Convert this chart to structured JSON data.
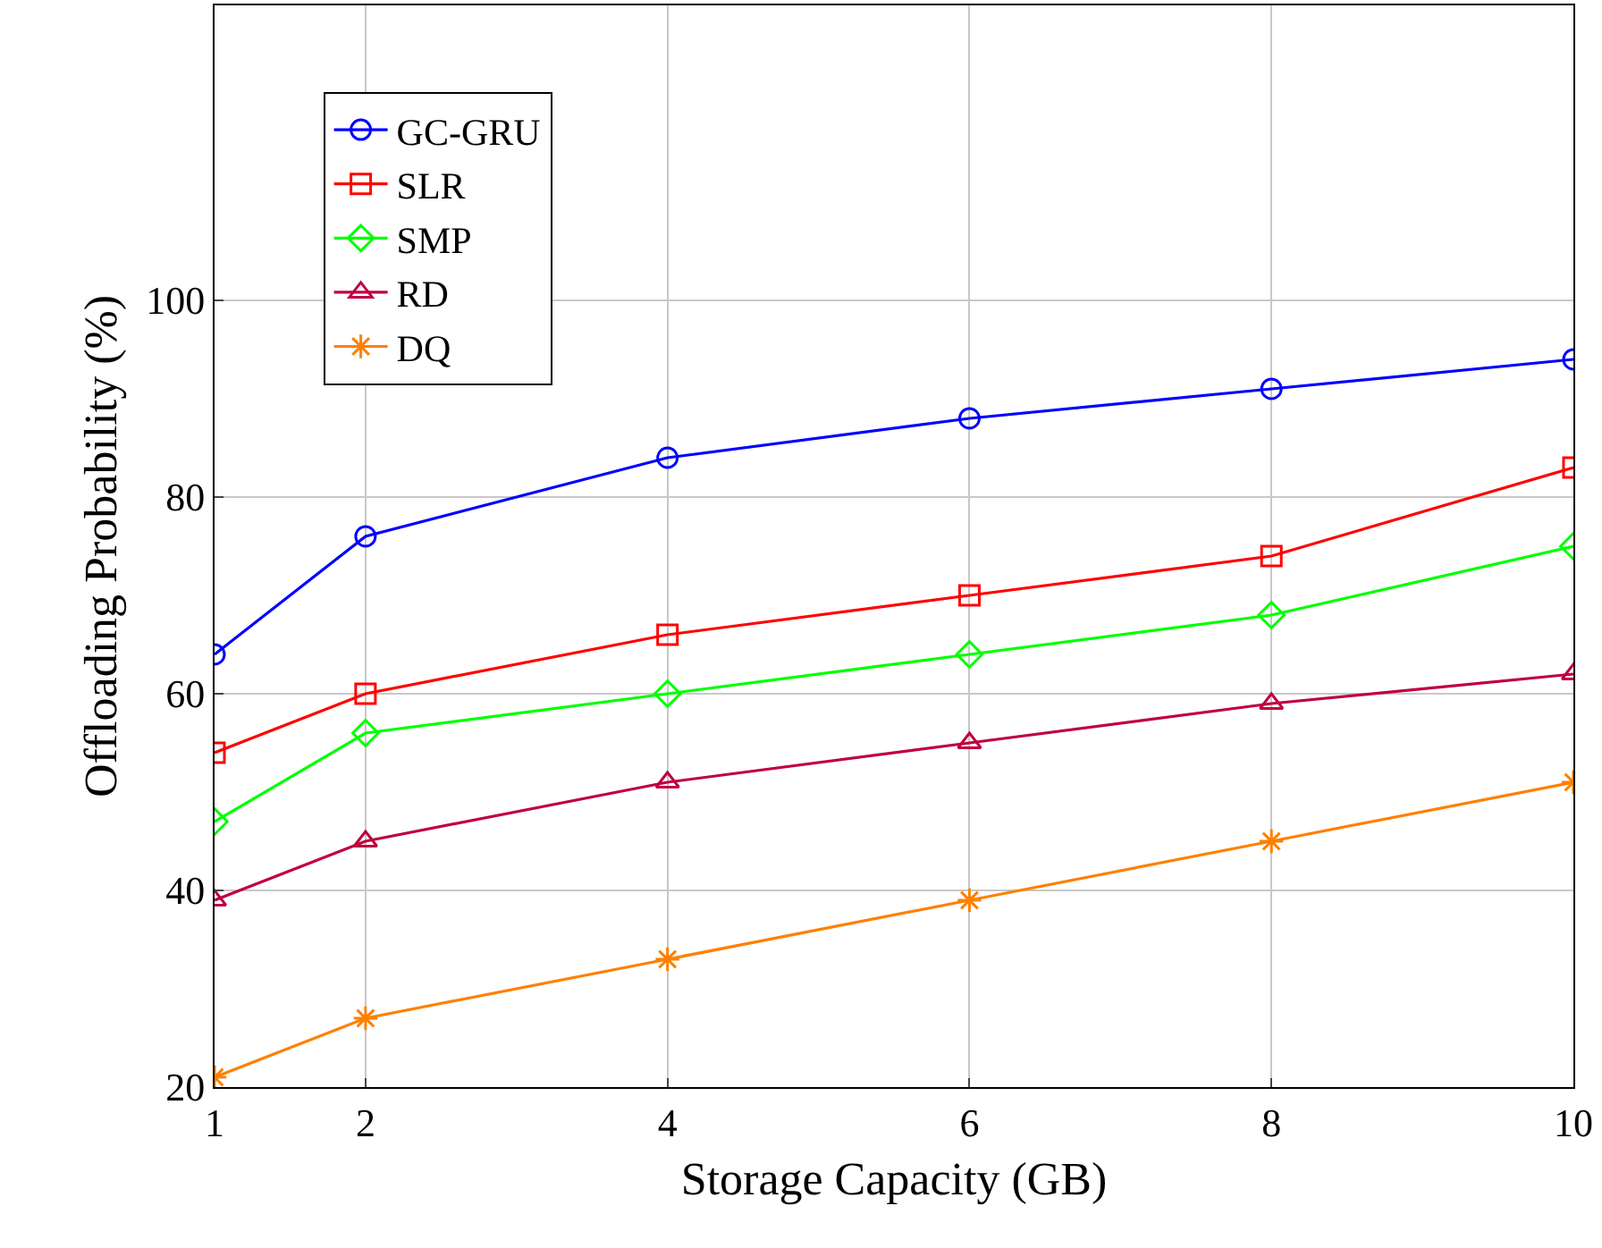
{
  "chart_data": {
    "type": "line",
    "xlabel": "Storage Capacity (GB)",
    "ylabel": "Offloading Probability (%)",
    "x": [
      1,
      2,
      4,
      6,
      8,
      10
    ],
    "series": [
      {
        "name": "GC-GRU",
        "color": "#0000ff",
        "marker": "circle",
        "values": [
          64,
          76,
          84,
          88,
          91,
          94
        ]
      },
      {
        "name": "SLR",
        "color": "#ff0000",
        "marker": "square",
        "values": [
          54,
          60,
          66,
          70,
          74,
          83
        ]
      },
      {
        "name": "SMP",
        "color": "#00ff00",
        "marker": "diamond",
        "values": [
          47,
          56,
          60,
          64,
          68,
          75
        ]
      },
      {
        "name": "RD",
        "color": "#bf0040",
        "marker": "triangle",
        "values": [
          39,
          45,
          51,
          55,
          59,
          62
        ]
      },
      {
        "name": "DQ",
        "color": "#ff8000",
        "marker": "cross",
        "values": [
          21,
          27,
          33,
          39,
          45,
          51
        ]
      }
    ],
    "xlim": [
      1,
      10
    ],
    "xticks": [
      1,
      2,
      4,
      6,
      8,
      10
    ],
    "ylim": [
      20,
      130
    ],
    "yticks": [
      20,
      40,
      60,
      80,
      100
    ],
    "grid": true,
    "legend": "top left",
    "line_style": "solid"
  }
}
